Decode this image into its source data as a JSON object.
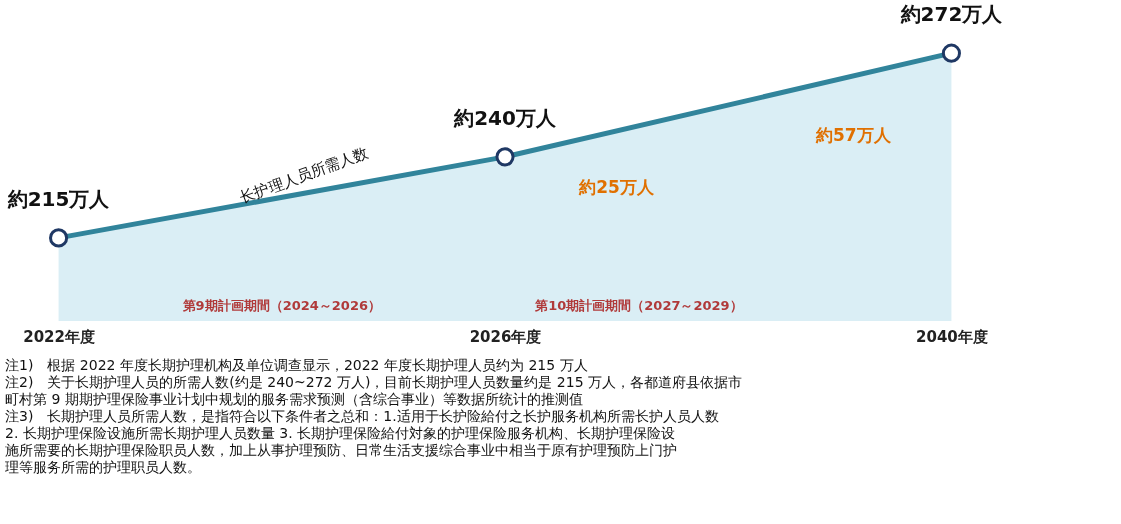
{
  "chart_data": {
    "type": "area",
    "categories": [
      "2022年度",
      "2026年度",
      "2040年度"
    ],
    "series": [
      {
        "name": "长护理人员所需人数",
        "color": "#31849b",
        "values": [
          215,
          240,
          272
        ],
        "value_labels": [
          "約215万人",
          "約240万人",
          "約272万人"
        ]
      }
    ],
    "annotations": [
      "約25万人",
      "約57万人",
      "第9期計画期間（2024～2026）",
      "第10期計画期間（2027～2029）",
      "注1)　根据 2022 年度长期护理机构及单位调查显示，2022 年度长期护理人员约为 215 万人",
      "注2)　关于长期护理人员的所需人数(约是 240~272 万人)，目前长期护理人员数量约是 215 万人，各都道府县依据市",
      "　　　町村第 9 期期护理保险事业计划中规划的服务需求预测（含综合事业）等数据所统计的推测值",
      "注3)　长期护理人员所需人数，是指符合以下条件者之总和：1.适用于长护险給付之长护服务机构所需长护人员人数",
      "　　　2. 长期护理保险设施所需长期护理人员数量 3. 长期护理保险給付対象的护理保险服务机构、长期护理保险设",
      "　　　施所需要的长期护理保险职员人数，加上从事护理预防、日常生活支援综合事业中相当于原有护理预防上门护",
      "　　　理等服务所需的护理职员人数。"
    ],
    "grid": false
  }
}
